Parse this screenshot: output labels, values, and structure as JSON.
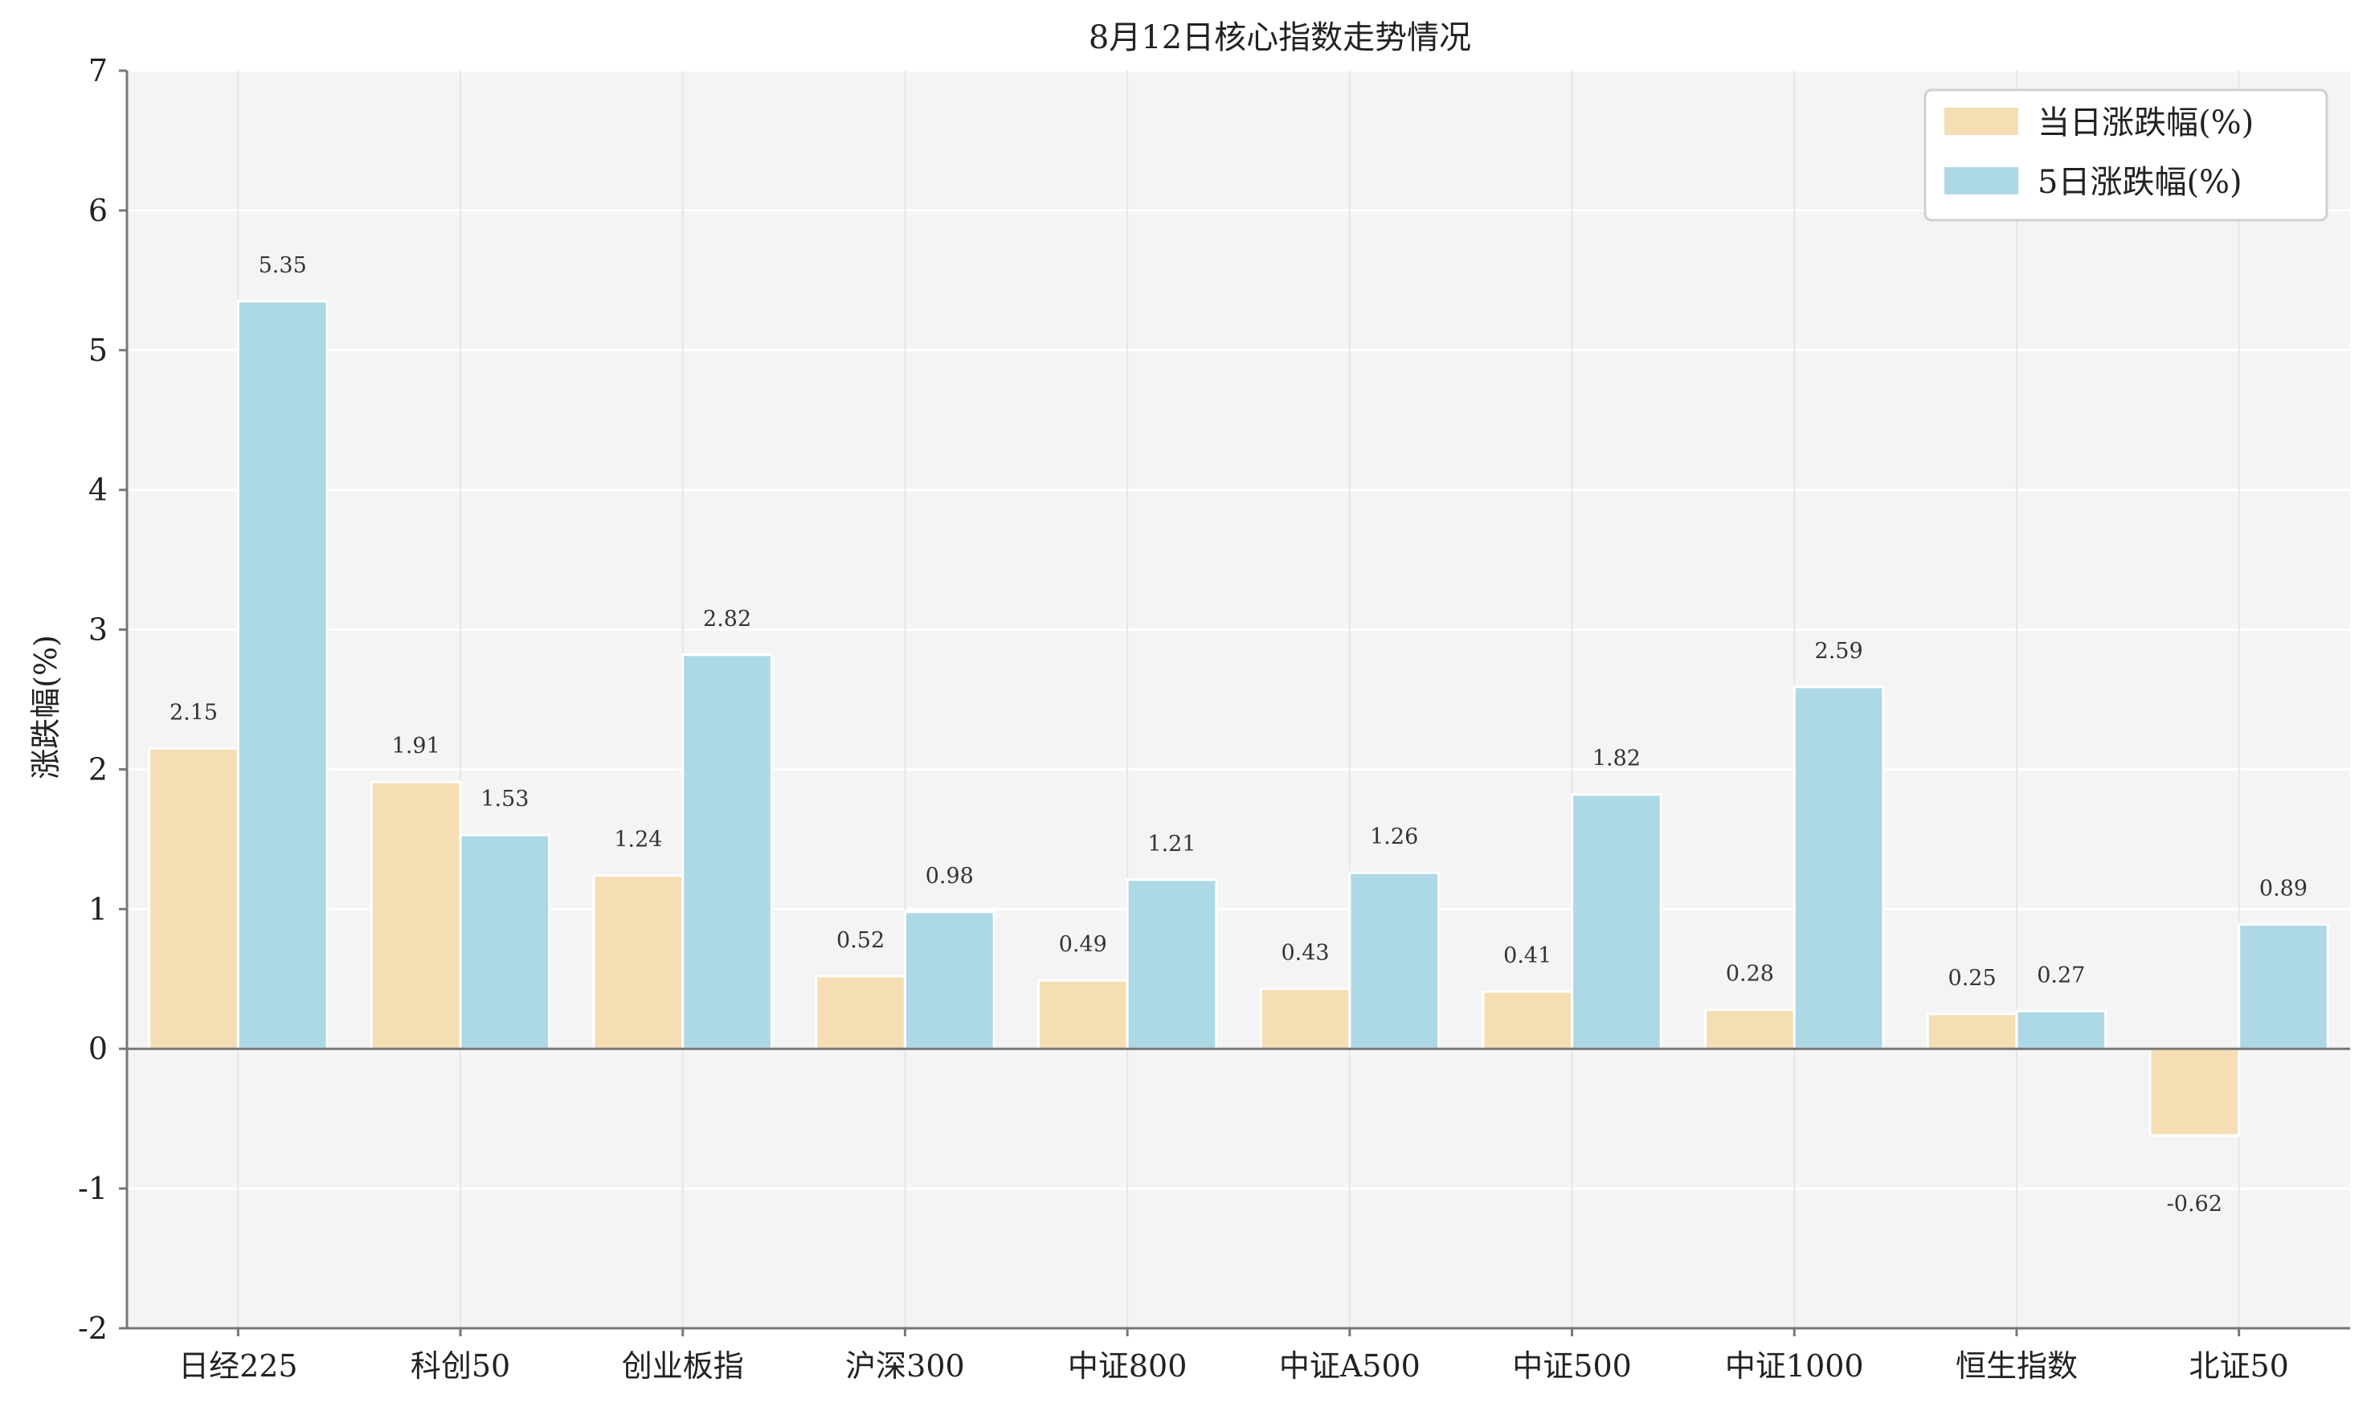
{
  "chart_data": {
    "type": "bar",
    "title": "8月12日核心指数走势情况",
    "xlabel": "",
    "ylabel": "涨跌幅(%)",
    "ylim": [
      -2,
      7
    ],
    "yticks": [
      -2,
      -1,
      0,
      1,
      2,
      3,
      4,
      5,
      6,
      7
    ],
    "grid": true,
    "legend_position": "top-right",
    "categories": [
      "日经225",
      "科创50",
      "创业板指",
      "沪深300",
      "中证800",
      "中证A500",
      "中证500",
      "中证1000",
      "恒生指数",
      "北证50"
    ],
    "series": [
      {
        "name": "当日涨跌幅(%)",
        "color": "#F5DEB3",
        "values": [
          2.15,
          1.91,
          1.24,
          0.52,
          0.49,
          0.43,
          0.41,
          0.28,
          0.25,
          -0.62
        ]
      },
      {
        "name": "5日涨跌幅(%)",
        "color": "#ADD8E6",
        "values": [
          5.35,
          1.53,
          2.82,
          0.98,
          1.21,
          1.26,
          1.82,
          2.59,
          0.27,
          0.89
        ]
      }
    ],
    "colors": {
      "plot_background": "#F4F4F4",
      "axis": "#777777",
      "grid": "#FFFFFF"
    }
  }
}
